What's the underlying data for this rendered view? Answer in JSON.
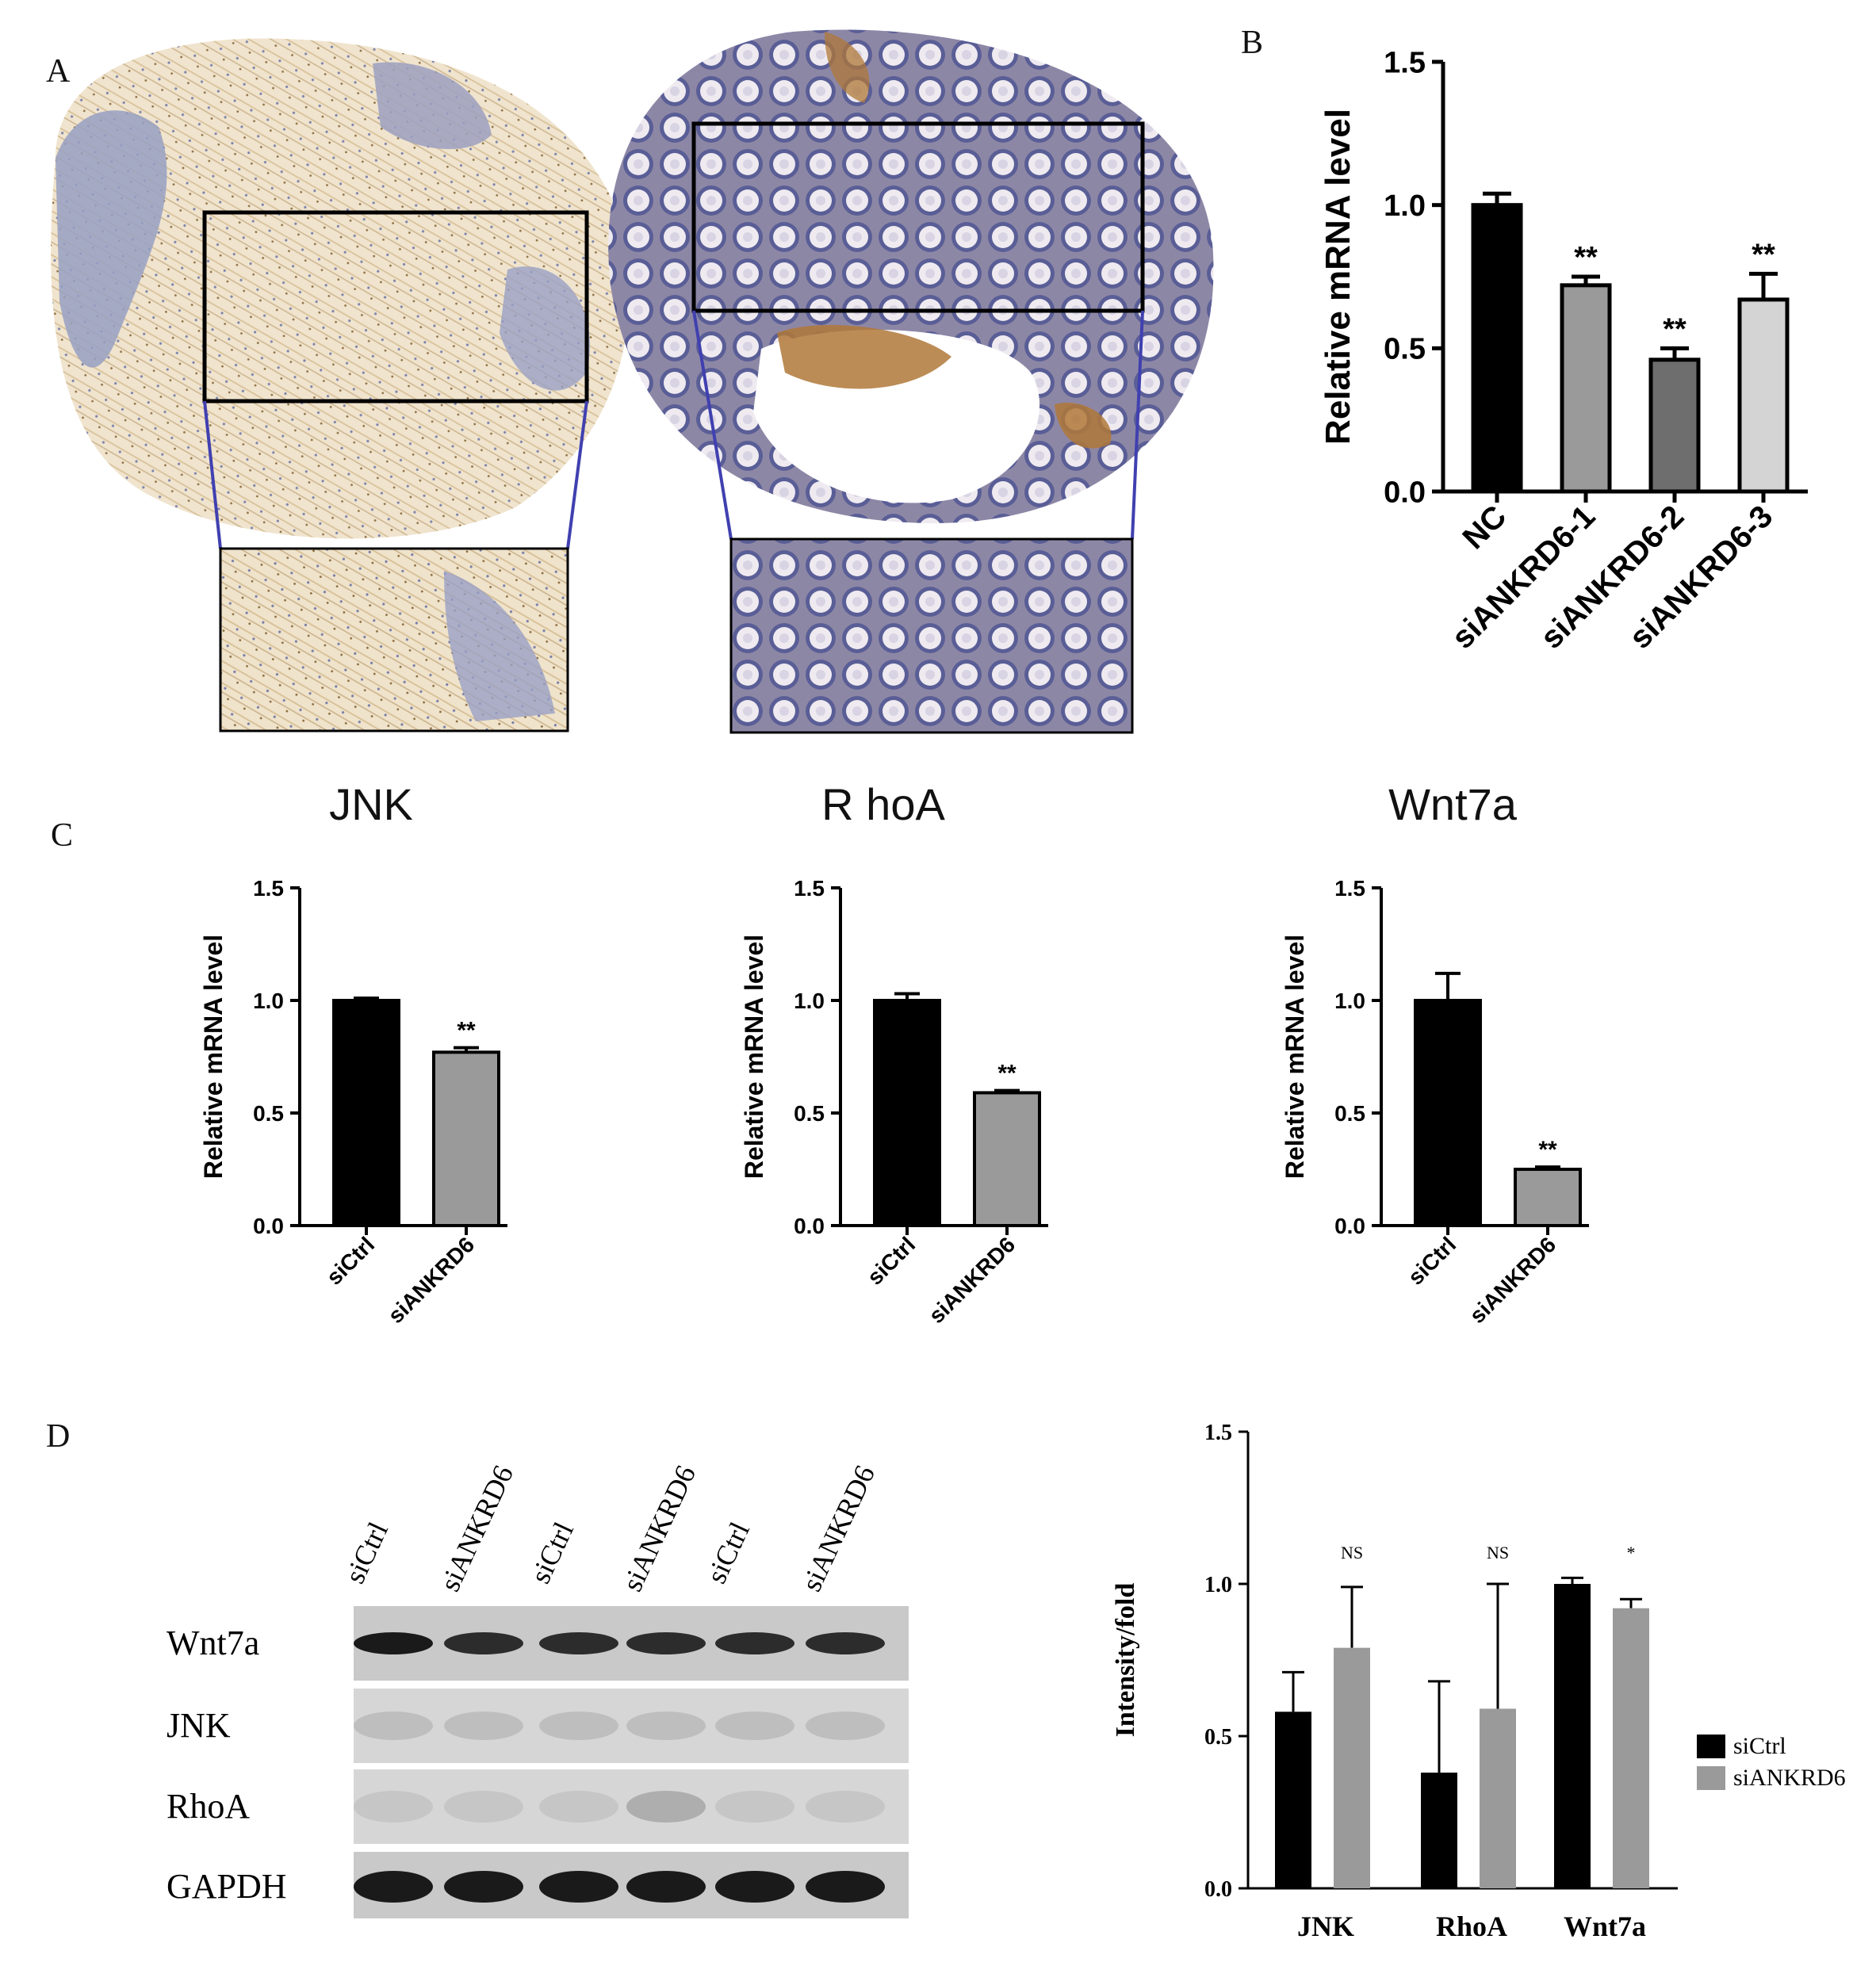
{
  "panels": {
    "a": "A",
    "b": "B",
    "c": "C",
    "d": "D"
  },
  "colors": {
    "black": "#000000",
    "mid_gray": "#9a9a9a",
    "dark_gray": "#6e6e6e",
    "light_gray": "#d4d4d4",
    "tissue_tan": "#e8d7b8",
    "tissue_blue": "#9aa3c8",
    "zoom_line": "#4040b0"
  },
  "ihc": {
    "description_icons": [
      "tissue-core-tumor",
      "tissue-core-normal"
    ]
  },
  "chart_data": [
    {
      "id": "b",
      "type": "bar",
      "ylabel": "Relative mRNA level",
      "ylim": [
        0,
        1.5
      ],
      "yticks": [
        "0.0",
        "0.5",
        "1.0",
        "1.5"
      ],
      "categories": [
        "NC",
        "siANKRD6-1",
        "siANKRD6-2",
        "siANKRD6-3"
      ],
      "values": [
        1.0,
        0.72,
        0.46,
        0.67
      ],
      "errors": [
        0.04,
        0.03,
        0.04,
        0.09
      ],
      "annotations": [
        "",
        "**",
        "**",
        "**"
      ],
      "bar_colors": [
        "#000000",
        "#9a9a9a",
        "#6e6e6e",
        "#d4d4d4"
      ],
      "grid": false
    },
    {
      "id": "c1",
      "type": "bar",
      "title": "JNK",
      "ylabel": "Relative mRNA level",
      "ylim": [
        0,
        1.5
      ],
      "yticks": [
        "0.0",
        "0.5",
        "1.0",
        "1.5"
      ],
      "categories": [
        "siCtrl",
        "siANKRD6"
      ],
      "values": [
        1.0,
        0.77
      ],
      "errors": [
        0.01,
        0.02
      ],
      "annotations": [
        "",
        "**"
      ],
      "bar_colors": [
        "#000000",
        "#9a9a9a"
      ],
      "grid": false
    },
    {
      "id": "c2",
      "type": "bar",
      "title": "R hoA",
      "ylabel": "Relative mRNA level",
      "ylim": [
        0,
        1.5
      ],
      "yticks": [
        "0.0",
        "0.5",
        "1.0",
        "1.5"
      ],
      "categories": [
        "siCtrl",
        "siANKRD6"
      ],
      "values": [
        1.0,
        0.59
      ],
      "errors": [
        0.03,
        0.01
      ],
      "annotations": [
        "",
        "**"
      ],
      "bar_colors": [
        "#000000",
        "#9a9a9a"
      ],
      "grid": false
    },
    {
      "id": "c3",
      "type": "bar",
      "title": "Wnt7a",
      "ylabel": "Relative mRNA level",
      "ylim": [
        0,
        1.5
      ],
      "yticks": [
        "0.0",
        "0.5",
        "1.0",
        "1.5"
      ],
      "categories": [
        "siCtrl",
        "siANKRD6"
      ],
      "values": [
        1.0,
        0.25
      ],
      "errors": [
        0.12,
        0.01
      ],
      "annotations": [
        "",
        "**"
      ],
      "bar_colors": [
        "#000000",
        "#9a9a9a"
      ],
      "grid": false
    },
    {
      "id": "d",
      "type": "bar",
      "ylabel": "Intensity/fold",
      "ylim": [
        0,
        1.5
      ],
      "yticks": [
        "0.0",
        "0.5",
        "1.0",
        "1.5"
      ],
      "categories": [
        "JNK",
        "RhoA",
        "Wnt7a"
      ],
      "series": [
        {
          "name": "siCtrl",
          "values": [
            0.58,
            0.38,
            1.0
          ],
          "errors": [
            0.13,
            0.3,
            0.02
          ],
          "color": "#000000"
        },
        {
          "name": "siANKRD6",
          "values": [
            0.79,
            0.59,
            0.92
          ],
          "errors": [
            0.2,
            0.41,
            0.03
          ],
          "color": "#9a9a9a"
        }
      ],
      "annotations": [
        "NS",
        "NS",
        "*"
      ],
      "legend": "right",
      "grid": false
    }
  ],
  "blot": {
    "lanes": [
      "siCtrl",
      "siANKRD6",
      "siCtrl",
      "siANKRD6",
      "siCtrl",
      "siANKRD6"
    ],
    "rows": [
      "Wnt7a",
      "JNK",
      "RhoA",
      "GAPDH"
    ]
  }
}
